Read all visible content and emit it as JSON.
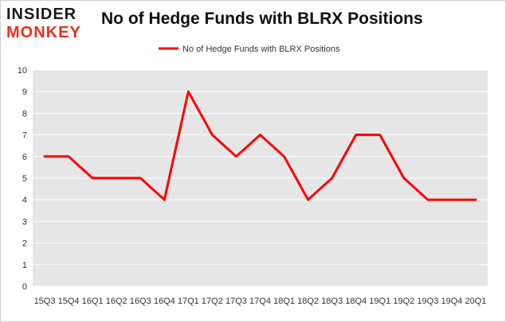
{
  "brand": {
    "line1": "INSIDER",
    "line2": "MONKEY"
  },
  "colors": {
    "series": "#ff0000",
    "plot_bg": "#e6e6e6",
    "grid": "#ffffff",
    "brand_red": "#e8301c"
  },
  "chart_data": {
    "type": "line",
    "title": "No of Hedge Funds with BLRX Positions",
    "xlabel": "",
    "ylabel": "",
    "categories": [
      "15Q3",
      "15Q4",
      "16Q1",
      "16Q2",
      "16Q3",
      "16Q4",
      "17Q1",
      "17Q2",
      "17Q3",
      "17Q4",
      "18Q1",
      "18Q2",
      "18Q3",
      "18Q4",
      "19Q1",
      "19Q2",
      "19Q3",
      "19Q4",
      "20Q1"
    ],
    "series": [
      {
        "name": "No of Hedge Funds with BLRX Positions",
        "values": [
          6,
          6,
          5,
          5,
          5,
          4,
          9,
          7,
          6,
          7,
          6,
          4,
          5,
          7,
          7,
          5,
          4,
          4,
          4
        ]
      }
    ],
    "ylim": [
      0,
      10
    ],
    "yticks": [
      0,
      1,
      2,
      3,
      4,
      5,
      6,
      7,
      8,
      9,
      10
    ],
    "grid": true,
    "legend": "top-center"
  }
}
